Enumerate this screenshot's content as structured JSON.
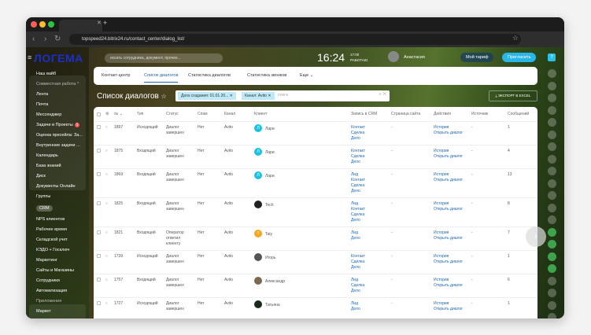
{
  "browser": {
    "url": "topspeed24.bitrix24.ru/contact_center/dialog_list/"
  },
  "header": {
    "logo": "ЛОГЕМА",
    "search_placeholder": "искать сотрудника, документ, прочее...",
    "time": "16:24",
    "alarm": "17:00",
    "work_status": "РАБОТАЮ",
    "user": "Анастасия",
    "tariff": "Мой тариф",
    "invite": "Пригласить",
    "help_badge": "1"
  },
  "sidebar": {
    "items": [
      {
        "label": "Наш вайб"
      },
      {
        "label": "Совместная работа ^"
      },
      {
        "label": "Лента"
      },
      {
        "label": "Почта"
      },
      {
        "label": "Мессенджер"
      },
      {
        "label": "Задачи и Проекты",
        "badge": "1"
      },
      {
        "label": "Оценка пресейла: За..."
      },
      {
        "label": "Внутренние задачи ..."
      },
      {
        "label": "Календарь"
      },
      {
        "label": "База знаний"
      },
      {
        "label": "Диск"
      },
      {
        "label": "Документы Онлайн"
      },
      {
        "label": "Группы"
      },
      {
        "label": "CRM"
      },
      {
        "label": "NPS клиентов"
      },
      {
        "label": "Рабочее время"
      },
      {
        "label": "Складской учет"
      },
      {
        "label": "КЭДО + Госключ"
      },
      {
        "label": "Маркетинг"
      },
      {
        "label": "Сайты и Магазины"
      },
      {
        "label": "Сотрудники"
      },
      {
        "label": "Автоматизация"
      },
      {
        "label": "Приложения"
      },
      {
        "label": "Маркет"
      }
    ]
  },
  "tabs": [
    {
      "label": "Контакт-центр"
    },
    {
      "label": "Список диалогов",
      "active": true
    },
    {
      "label": "Статистика диалогов"
    },
    {
      "label": "Статистика звонков"
    },
    {
      "label": "Еще ⌄"
    }
  ],
  "page": {
    "title": "Список диалогов",
    "filters": [
      "Дата создания: 01.01.20...",
      "Канал: Avito"
    ],
    "search_placeholder": "поиск",
    "export": "ЭКСПОРТ В EXCEL"
  },
  "table": {
    "columns": [
      "№ ⌄",
      "Тип",
      "Статус",
      "Спам",
      "Канал",
      "Клиент",
      "Запись в CRM",
      "Страница сайта",
      "Действия",
      "Источник",
      "Сообщений"
    ],
    "rows": [
      {
        "id": "1897",
        "type": "Исходящий",
        "status": "Диалог завершен",
        "spam": "Нет",
        "channel": "Avito",
        "client": "Лари",
        "initial": "Л",
        "color": "#1ec0e0",
        "crm": "Контакт\nСделка\nДело",
        "page": "-",
        "actions": "История\nОткрыть диалог",
        "source": "-",
        "messages": "1"
      },
      {
        "id": "1875",
        "type": "Входящий",
        "status": "Диалог завершен",
        "spam": "Нет",
        "channel": "Avito",
        "client": "Лари",
        "initial": "Л",
        "color": "#1ec0e0",
        "crm": "Контакт\nСделка\nДело",
        "page": "-",
        "actions": "История\nОткрыть диалог",
        "source": "-",
        "messages": "4"
      },
      {
        "id": "1869",
        "type": "Входящий",
        "status": "Диалог завершен",
        "spam": "Нет",
        "channel": "Avito",
        "client": "Лари",
        "initial": "Л",
        "color": "#1ec0e0",
        "crm": "Лид\nКонтакт\nСделка\nДело",
        "page": "-",
        "actions": "История\nОткрыть диалог",
        "source": "-",
        "messages": "13"
      },
      {
        "id": "1825",
        "type": "Входящий",
        "status": "Диалог завершен",
        "spam": "Нет",
        "channel": "Avito",
        "client": "Tech",
        "initial": "",
        "color": "#222",
        "crm": "Лид\nКонтакт\nСделка\nДело",
        "page": "-",
        "actions": "История\nОткрыть диалог",
        "source": "-",
        "messages": "8"
      },
      {
        "id": "1821",
        "type": "Входящий",
        "status": "Оператор ответил клиенту",
        "spam": "Нет",
        "channel": "Avito",
        "client": "Taty",
        "initial": "T",
        "color": "#f5a623",
        "crm": "Лид\nДело",
        "page": "-",
        "actions": "История\nОткрыть диалог",
        "source": "-",
        "messages": "7"
      },
      {
        "id": "1739",
        "type": "Исходящий",
        "status": "Диалог завершен",
        "spam": "Нет",
        "channel": "Avito",
        "client": "Игорь",
        "initial": "",
        "color": "#555",
        "crm": "Контакт\nСделка\nДело",
        "page": "-",
        "actions": "История\nОткрыть диалог",
        "source": "-",
        "messages": "1"
      },
      {
        "id": "1757",
        "type": "Входящий",
        "status": "Диалог завершен",
        "spam": "Нет",
        "channel": "Avito",
        "client": "Александр",
        "initial": "",
        "color": "#7a6a50",
        "crm": "Лид\nСделка\nДело",
        "page": "-",
        "actions": "История\nОткрыть диалог",
        "source": "-",
        "messages": "6"
      },
      {
        "id": "1727",
        "type": "Исходящий",
        "status": "Диалог завершен",
        "spam": "Нет",
        "channel": "Avito",
        "client": "Татьяна",
        "initial": "",
        "color": "#1a2a1a",
        "crm": "Лид\nДело",
        "page": "-",
        "actions": "История\nОткрыть диалог",
        "source": "-",
        "messages": "1"
      }
    ]
  }
}
